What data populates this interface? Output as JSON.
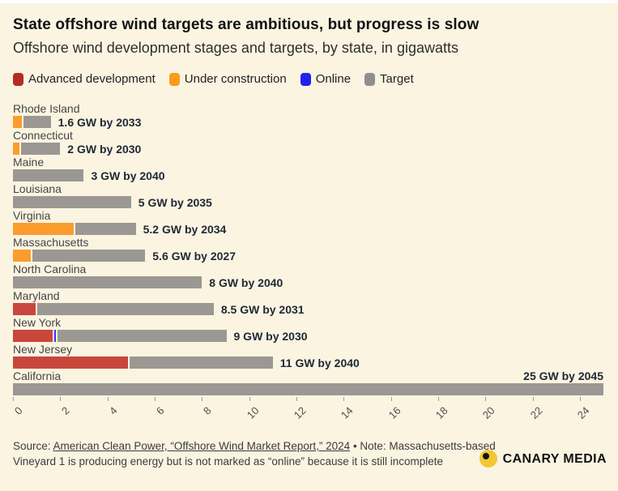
{
  "header": {
    "title": "State offshore wind targets are ambitious, but progress is slow",
    "subtitle": "Offshore wind development stages and targets, by state, in gigawatts"
  },
  "legend": [
    {
      "key": "advanced",
      "label": "Advanced development",
      "color": "#b22d24"
    },
    {
      "key": "under_construction",
      "label": "Under construction",
      "color": "#f99c1a"
    },
    {
      "key": "online",
      "label": "Online",
      "color": "#2121ee"
    },
    {
      "key": "target",
      "label": "Target",
      "color": "#8f8f8f"
    }
  ],
  "chart_data": {
    "type": "bar",
    "orientation": "horizontal",
    "unit": "gigawatts",
    "title": "State offshore wind targets are ambitious, but progress is slow",
    "subtitle": "Offshore wind development stages and targets, by state, in gigawatts",
    "x_axis": {
      "min": 0,
      "max": 25,
      "tick_step": 2,
      "ticks": [
        0,
        2,
        4,
        6,
        8,
        10,
        12,
        14,
        16,
        18,
        20,
        22,
        24
      ],
      "grid": false
    },
    "stage_colors": {
      "advanced": "#c9463d",
      "under_construction": "#fa9d2d",
      "online": "#3737f0",
      "target": "#9b9893"
    },
    "rows": [
      {
        "state": "Rhode Island",
        "annotation": "1.6 GW by 2033",
        "total_gw": 1.6,
        "segments": [
          {
            "stage": "under_construction",
            "gw": 0.4
          },
          {
            "stage": "target",
            "gw": 1.2
          }
        ]
      },
      {
        "state": "Connecticut",
        "annotation": "2 GW by 2030",
        "total_gw": 2,
        "segments": [
          {
            "stage": "under_construction",
            "gw": 0.3
          },
          {
            "stage": "target",
            "gw": 1.7
          }
        ]
      },
      {
        "state": "Maine",
        "annotation": "3 GW by 2040",
        "total_gw": 3,
        "segments": [
          {
            "stage": "target",
            "gw": 3
          }
        ]
      },
      {
        "state": "Louisiana",
        "annotation": "5 GW by 2035",
        "total_gw": 5,
        "segments": [
          {
            "stage": "target",
            "gw": 5
          }
        ]
      },
      {
        "state": "Virginia",
        "annotation": "5.2 GW by 2034",
        "total_gw": 5.2,
        "segments": [
          {
            "stage": "under_construction",
            "gw": 2.6
          },
          {
            "stage": "target",
            "gw": 2.6
          }
        ]
      },
      {
        "state": "Massachusetts",
        "annotation": "5.6 GW by 2027",
        "total_gw": 5.6,
        "segments": [
          {
            "stage": "under_construction",
            "gw": 0.8
          },
          {
            "stage": "target",
            "gw": 4.8
          }
        ]
      },
      {
        "state": "North Carolina",
        "annotation": "8 GW by 2040",
        "total_gw": 8,
        "segments": [
          {
            "stage": "target",
            "gw": 8
          }
        ]
      },
      {
        "state": "Maryland",
        "annotation": "8.5 GW by 2031",
        "total_gw": 8.5,
        "segments": [
          {
            "stage": "advanced",
            "gw": 1.0
          },
          {
            "stage": "target",
            "gw": 7.5
          }
        ]
      },
      {
        "state": "New York",
        "annotation": "9 GW by 2030",
        "total_gw": 9,
        "segments": [
          {
            "stage": "advanced",
            "gw": 1.7
          },
          {
            "stage": "online",
            "gw": 0.1
          },
          {
            "stage": "target",
            "gw": 7.2
          }
        ]
      },
      {
        "state": "New Jersey",
        "annotation": "11 GW by 2040",
        "total_gw": 11,
        "segments": [
          {
            "stage": "advanced",
            "gw": 4.9
          },
          {
            "stage": "target",
            "gw": 6.1
          }
        ]
      },
      {
        "state": "California",
        "annotation": "25 GW by 2045",
        "total_gw": 25,
        "annotation_position": "above-right",
        "segments": [
          {
            "stage": "target",
            "gw": 25
          }
        ]
      }
    ]
  },
  "source": {
    "prefix": "Source: ",
    "link": "American Clean Power, “Offshore Wind Market Report,” 2024",
    "rest": " • Note: Massachusetts-based Vineyard 1 is producing energy but is not marked as “online” because it is still incomplete"
  },
  "logo": {
    "text": "CANARY MEDIA"
  }
}
